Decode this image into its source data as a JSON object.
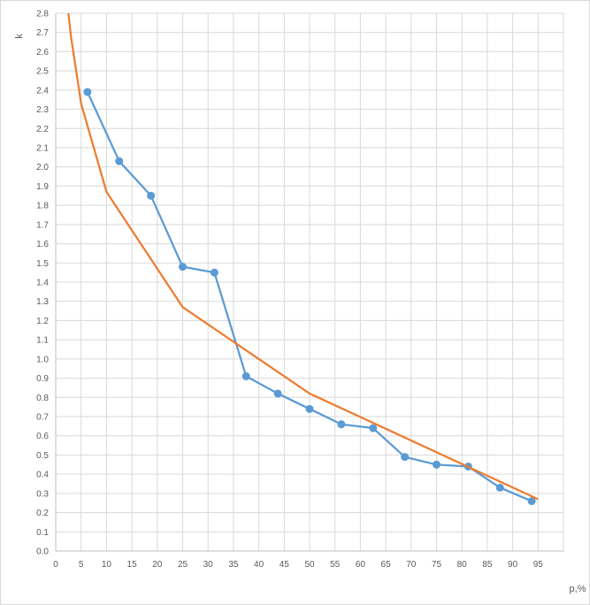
{
  "chart_data": {
    "type": "line",
    "title": "",
    "xlabel": "p,%",
    "ylabel": "k",
    "xlim": [
      0,
      100
    ],
    "ylim": [
      0,
      2.8
    ],
    "xticks": [
      0,
      5,
      10,
      15,
      20,
      25,
      30,
      35,
      40,
      45,
      50,
      55,
      60,
      65,
      70,
      75,
      80,
      85,
      90,
      95
    ],
    "yticks": [
      0.0,
      0.1,
      0.2,
      0.3,
      0.4,
      0.5,
      0.6,
      0.7,
      0.8,
      0.9,
      1.0,
      1.1,
      1.2,
      1.3,
      1.4,
      1.5,
      1.6,
      1.7,
      1.8,
      1.9,
      2.0,
      2.1,
      2.2,
      2.3,
      2.4,
      2.5,
      2.6,
      2.7,
      2.8
    ],
    "grid": true,
    "legend": "none",
    "series": [
      {
        "kind": "line-markers",
        "color": "#5b9bd5",
        "x": [
          6.25,
          12.5,
          18.75,
          25.0,
          31.25,
          37.5,
          43.75,
          50.0,
          56.25,
          62.5,
          68.75,
          75.0,
          81.25,
          87.5,
          93.75
        ],
        "y": [
          2.39,
          2.03,
          1.85,
          1.48,
          1.45,
          0.91,
          0.82,
          0.74,
          0.66,
          0.64,
          0.49,
          0.45,
          0.44,
          0.33,
          0.26
        ]
      },
      {
        "kind": "line",
        "color": "#ed7d31",
        "x": [
          2.5,
          3.0,
          5.0,
          10.0,
          25.0,
          50.0,
          95.0
        ],
        "y": [
          2.8,
          2.68,
          2.33,
          1.87,
          1.27,
          0.82,
          0.27
        ]
      }
    ]
  }
}
